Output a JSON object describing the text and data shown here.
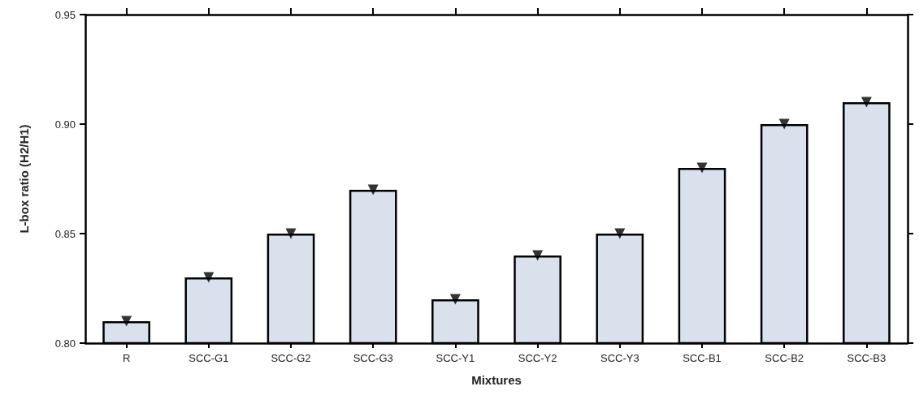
{
  "chart_data": {
    "type": "bar",
    "xlabel": "Mixtures",
    "ylabel": "L-box ratio (H2/H1)",
    "categories": [
      "R",
      "SCC-G1",
      "SCC-G2",
      "SCC-G3",
      "SCC-Y1",
      "SCC-Y2",
      "SCC-Y3",
      "SCC-B1",
      "SCC-B2",
      "SCC-B3"
    ],
    "series": [
      {
        "color": "#d9e2ec",
        "values": [
          0.81,
          0.83,
          0.85,
          0.87,
          0.82,
          0.84,
          0.85,
          0.88,
          0.9,
          0.91
        ]
      },
      {
        "type": "scatter",
        "color": "#000000",
        "x": [
          "R",
          "SCC-G1",
          "SCC-G2",
          "SCC-G3",
          "SCC-Y1",
          "SCC-Y2",
          "SCC-Y3",
          "SCC-B1",
          "SCC-B2",
          "SCC-B3"
        ],
        "values": [
          0.81,
          0.83,
          0.85,
          0.87,
          0.82,
          0.84,
          0.85,
          0.88,
          0.9,
          0.91
        ]
      }
    ],
    "marker": "triangle",
    "ylim": [
      0.8,
      0.95
    ],
    "yticks": [
      {
        "value": 0.8,
        "label": "0.80"
      },
      {
        "value": 0.85,
        "label": "0.85"
      },
      {
        "value": 0.9,
        "label": "0.90"
      },
      {
        "value": 0.95,
        "label": "0.95"
      }
    ]
  }
}
